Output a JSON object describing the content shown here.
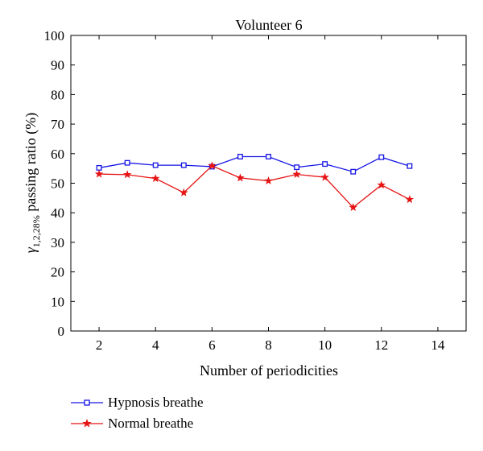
{
  "chart_data": {
    "type": "line",
    "title": "Volunteer 6",
    "xlabel": "Number of periodicities",
    "ylabel": {
      "symbol": "γ",
      "subscript": "1,2,28%",
      "text": " passing ratio (%)"
    },
    "xlim": [
      1,
      15
    ],
    "ylim": [
      0,
      100
    ],
    "xticks": [
      2,
      4,
      6,
      8,
      10,
      12,
      14
    ],
    "yticks": [
      0,
      10,
      20,
      30,
      40,
      50,
      60,
      70,
      80,
      90,
      100
    ],
    "grid": false,
    "legend_position": "bottom-left",
    "series": [
      {
        "name": "Hypnosis breathe",
        "color": "#1414e6",
        "marker": "square",
        "x": [
          2,
          3,
          4,
          5,
          6,
          7,
          8,
          9,
          10,
          11,
          12,
          13
        ],
        "y": [
          55.2,
          56.9,
          56.1,
          56.1,
          55.6,
          59.0,
          59.0,
          55.4,
          56.5,
          53.9,
          58.8,
          55.8
        ]
      },
      {
        "name": "Normal breathe",
        "color": "#e61414",
        "marker": "star",
        "x": [
          2,
          3,
          4,
          5,
          6,
          7,
          8,
          9,
          10,
          11,
          12,
          13
        ],
        "y": [
          53.1,
          52.9,
          51.6,
          46.8,
          55.9,
          51.8,
          50.8,
          53.0,
          52.0,
          41.8,
          49.4,
          44.5
        ]
      }
    ]
  }
}
